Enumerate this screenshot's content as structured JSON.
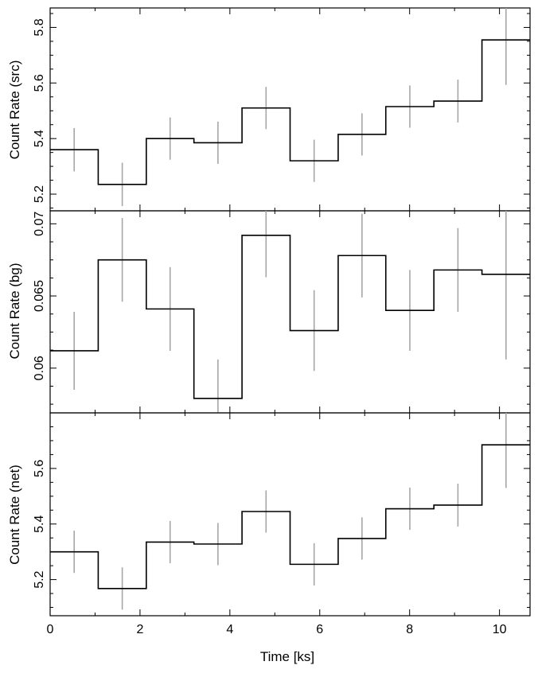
{
  "chart_data": [
    {
      "type": "line",
      "style": "step",
      "panel": "top",
      "ylabel": "Count Rate (src)",
      "xlabel": "",
      "xlim": [
        0,
        10.68
      ],
      "ylim": [
        5.14,
        5.87
      ],
      "yticks": [
        5.2,
        5.4,
        5.6,
        5.8
      ],
      "ytick_labels": [
        "5.2",
        "5.4",
        "5.6",
        "5.8"
      ],
      "bin_edges": [
        0,
        1.07,
        2.14,
        3.2,
        4.27,
        5.34,
        6.41,
        7.47,
        8.54,
        9.61,
        10.68
      ],
      "values": [
        5.36,
        5.235,
        5.4,
        5.385,
        5.51,
        5.32,
        5.415,
        5.515,
        5.535,
        5.755
      ],
      "errors": [
        0.078,
        0.078,
        0.076,
        0.076,
        0.076,
        0.076,
        0.076,
        0.076,
        0.077,
        0.162
      ]
    },
    {
      "type": "line",
      "style": "step",
      "panel": "middle",
      "ylabel": "Count Rate (bg)",
      "xlabel": "",
      "xlim": [
        0,
        10.68
      ],
      "ylim": [
        0.0569,
        0.0709
      ],
      "yticks": [
        0.06,
        0.065,
        0.07
      ],
      "ytick_labels": [
        "0.06",
        "0.065",
        "0.07"
      ],
      "bin_edges": [
        0,
        1.07,
        2.14,
        3.2,
        4.27,
        5.34,
        6.41,
        7.47,
        8.54,
        9.61,
        10.68
      ],
      "values": [
        0.0612,
        0.0675,
        0.0641,
        0.0579,
        0.0692,
        0.0626,
        0.0678,
        0.064,
        0.0668,
        0.0665
      ],
      "errors": [
        0.0027,
        0.0029,
        0.0029,
        0.0027,
        0.0029,
        0.0028,
        0.0029,
        0.0028,
        0.0029,
        0.0059
      ]
    },
    {
      "type": "line",
      "style": "step",
      "panel": "bottom",
      "ylabel": "Count Rate (net)",
      "xlabel": "Time [ks]",
      "xlim": [
        0,
        10.68
      ],
      "ylim": [
        5.07,
        5.8
      ],
      "xticks": [
        0,
        2,
        4,
        6,
        8,
        10
      ],
      "xtick_labels": [
        "0",
        "2",
        "4",
        "6",
        "8",
        "10"
      ],
      "yticks": [
        5.2,
        5.4,
        5.6
      ],
      "ytick_labels": [
        "5.2",
        "5.4",
        "5.6"
      ],
      "bin_edges": [
        0,
        1.07,
        2.14,
        3.2,
        4.27,
        5.34,
        6.41,
        7.47,
        8.54,
        9.61,
        10.68
      ],
      "values": [
        5.3,
        5.168,
        5.335,
        5.328,
        5.445,
        5.255,
        5.348,
        5.455,
        5.468,
        5.685
      ],
      "errors": [
        0.076,
        0.076,
        0.076,
        0.076,
        0.076,
        0.076,
        0.076,
        0.076,
        0.077,
        0.155
      ]
    }
  ],
  "colors": {
    "step_line": "#000000",
    "error_bar": "#a6a6a6",
    "frame": "#000000",
    "background": "#ffffff"
  }
}
